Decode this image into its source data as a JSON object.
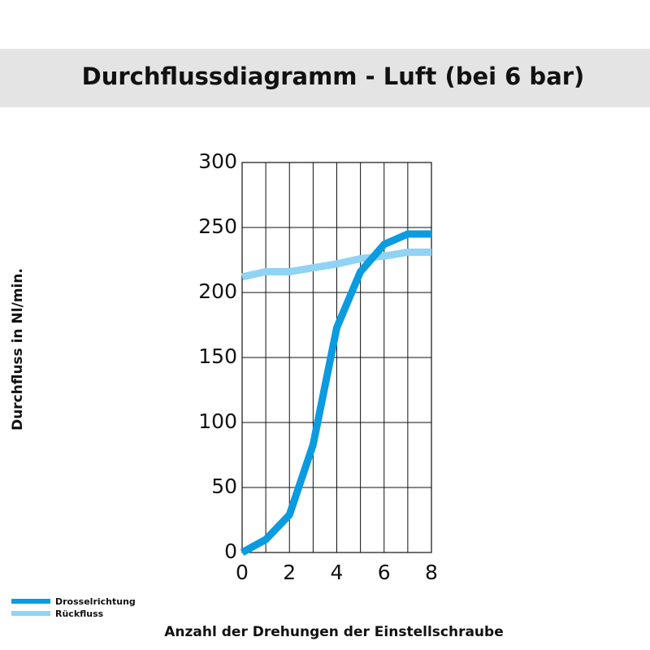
{
  "chart_data": {
    "type": "line",
    "title": "Durchflussdiagramm - Luft (bei 6 bar)",
    "x_label": "Anzahl der Drehungen der Einstellschraube",
    "y_label": "Durchfluss in Nl/min.",
    "x": [
      0,
      1,
      2,
      3,
      4,
      5,
      6,
      7,
      8
    ],
    "series": [
      {
        "name": "Drosselrichtung",
        "color": "#0a9be0",
        "values": [
          0,
          10,
          29,
          83,
          173,
          216,
          237,
          245,
          245
        ]
      },
      {
        "name": "Rückfluss",
        "color": "#8fd3f5",
        "values": [
          212,
          216,
          216,
          219,
          222,
          226,
          228,
          231,
          231
        ]
      }
    ],
    "xlim": [
      0,
      8
    ],
    "xticks": [
      0,
      2,
      4,
      6,
      8
    ],
    "x_grid_step": 1,
    "ylim": [
      0,
      300
    ],
    "yticks": [
      0,
      50,
      100,
      150,
      200,
      250,
      300
    ],
    "grid": true,
    "legend": "bottom-left"
  }
}
